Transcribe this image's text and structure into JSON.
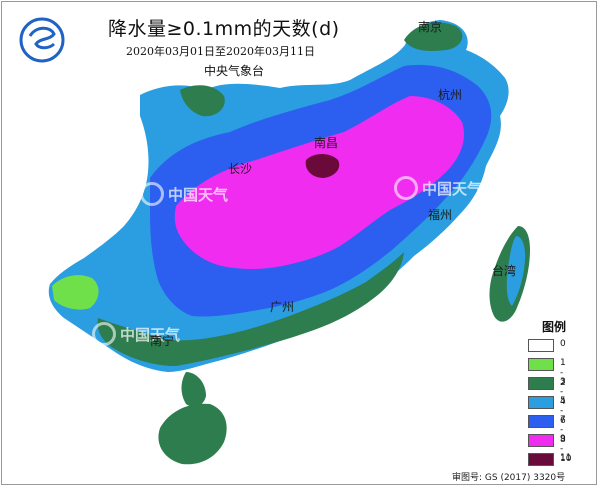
{
  "header": {
    "title": "降水量≥0.1mm的天数(d)",
    "period": "2020年03月01日至2020年03月11日",
    "issuer": "中央气象台"
  },
  "cities": {
    "nanjing": "南京",
    "hangzhou": "杭州",
    "nanchang": "南昌",
    "changsha": "长沙",
    "fuzhou": "福州",
    "taiwan": "台湾",
    "guangzhou": "广州",
    "nanning": "南宁"
  },
  "legend": {
    "title": "图例",
    "items": [
      {
        "label": "0",
        "color": "#ffffff"
      },
      {
        "label": "1 - 2",
        "color": "#6fe04a"
      },
      {
        "label": "3 - 4",
        "color": "#2e7d4f"
      },
      {
        "label": "5 - 6",
        "color": "#2a9ee0"
      },
      {
        "label": "7 - 8",
        "color": "#2c5ff0"
      },
      {
        "label": "9 - 10",
        "color": "#f02cf0"
      },
      {
        "label": "11",
        "color": "#6a0a3a"
      }
    ]
  },
  "watermark": {
    "text": "中国天气"
  },
  "approval_number": "审图号: GS (2017) 3320号"
}
